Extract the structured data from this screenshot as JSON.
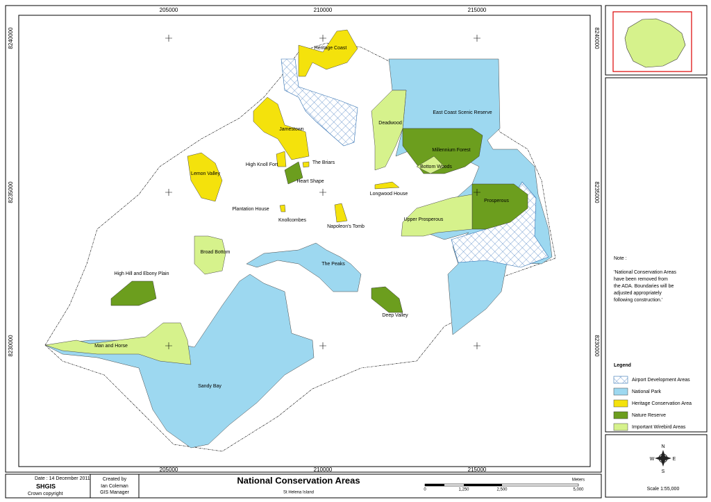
{
  "grid": {
    "x": [
      205000,
      210000,
      215000
    ],
    "y": [
      8240000,
      8235000,
      8230000
    ]
  },
  "areas": [
    "Heritage Coast",
    "East Coast Scenic Reserve",
    "Deadwood",
    "Jamestown",
    "Millennium Forest",
    "Bottom Woods",
    "The Briars",
    "High Knoll Fort",
    "Lemon Valley",
    "Heart Shape",
    "Longwood House",
    "Prosperous",
    "Plantation House",
    "Knollcombes",
    "Napoleon's Tomb",
    "Upper Prosperous",
    "Broad Bottom",
    "The Peaks",
    "High Hill and Ebony Plain",
    "Deep Valley",
    "Man and Horse",
    "Sandy Bay"
  ],
  "note": {
    "title": "Note :",
    "lines": [
      "'National Conservation Areas",
      "have been removed from",
      "the ADA.  Boundaries will be",
      "adjusted appropriately",
      "following construction.'"
    ]
  },
  "legend": {
    "title": "Legend",
    "items": [
      "Airport Development Areas",
      "National Park",
      "Heritage Conservation Area",
      "Nature Reserve",
      "Important Wirebird Areas"
    ]
  },
  "compass": {
    "n": "N",
    "s": "S",
    "e": "E",
    "w": "W",
    "scale": "Scale  1:55,000"
  },
  "footer": {
    "date": "Date : 14 December 2011",
    "org": "SHGIS",
    "copyright": "Crown copyright",
    "created_by": "Created by",
    "author": "Ian Coleman",
    "role": "GIS Manager",
    "title": "National Conservation Areas",
    "subtitle": "St Helena Island"
  },
  "scale_bar": {
    "labels": [
      "0",
      "1,250",
      "2,500",
      "5,000"
    ],
    "unit": "Meters"
  }
}
